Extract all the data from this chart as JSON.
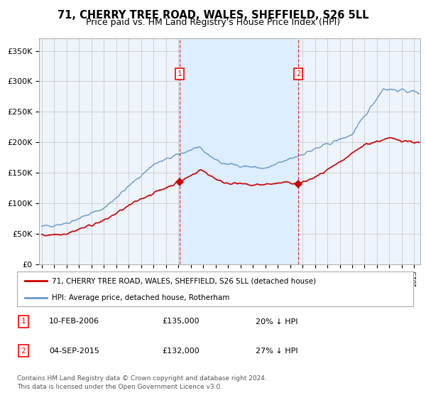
{
  "title": "71, CHERRY TREE ROAD, WALES, SHEFFIELD, S26 5LL",
  "subtitle": "Price paid vs. HM Land Registry's House Price Index (HPI)",
  "title_fontsize": 10.5,
  "subtitle_fontsize": 9,
  "ylim": [
    0,
    370000
  ],
  "yticks": [
    0,
    50000,
    100000,
    150000,
    200000,
    250000,
    300000,
    350000
  ],
  "ytick_labels": [
    "£0",
    "£50K",
    "£100K",
    "£150K",
    "£200K",
    "£250K",
    "£300K",
    "£350K"
  ],
  "xlim_start": 1994.8,
  "xlim_end": 2025.5,
  "purchase1_date": 2006.1,
  "purchase1_price": 135000,
  "purchase2_date": 2015.67,
  "purchase2_price": 132000,
  "red_line_color": "#cc0000",
  "blue_line_color": "#6699cc",
  "shade_color": "#ddeeff",
  "bg_color": "#eef4fb",
  "grid_color": "#cccccc",
  "legend_label_red": "71, CHERRY TREE ROAD, WALES, SHEFFIELD, S26 5LL (detached house)",
  "legend_label_blue": "HPI: Average price, detached house, Rotherham",
  "footnote1": "Contains HM Land Registry data © Crown copyright and database right 2024.",
  "footnote2": "This data is licensed under the Open Government Licence v3.0.",
  "purchase_info": [
    {
      "num": "1",
      "date": "10-FEB-2006",
      "price": "£135,000",
      "pct": "20% ↓ HPI"
    },
    {
      "num": "2",
      "date": "04-SEP-2015",
      "price": "£132,000",
      "pct": "27% ↓ HPI"
    }
  ]
}
